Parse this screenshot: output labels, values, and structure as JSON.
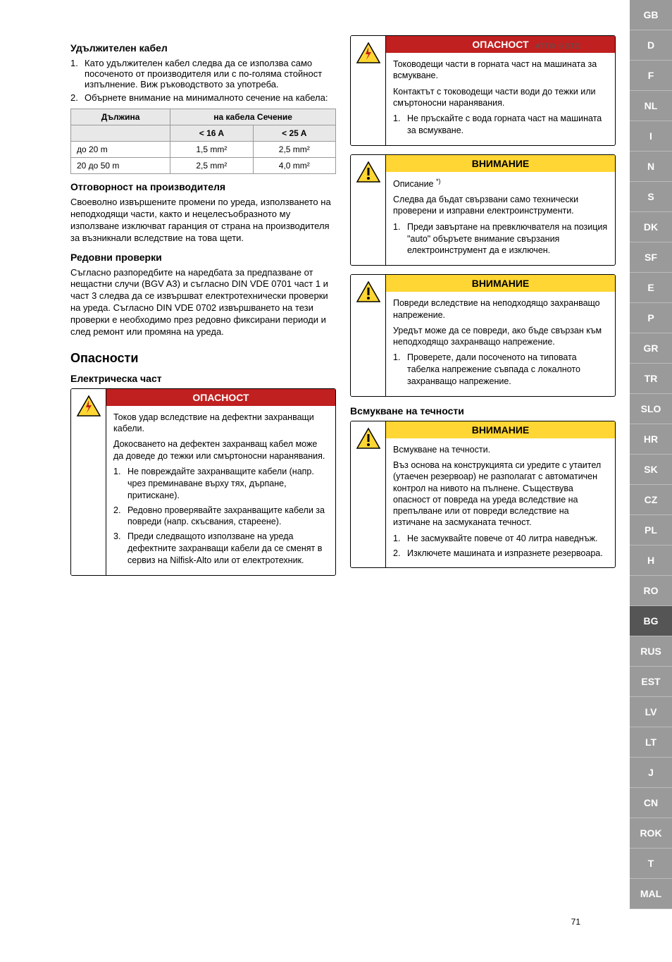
{
  "doc_header": "ATTIX 9 STD",
  "page_number": "71",
  "sidebar_tabs": [
    "GB",
    "D",
    "F",
    "NL",
    "I",
    "N",
    "S",
    "DK",
    "SF",
    "E",
    "P",
    "GR",
    "TR",
    "SLO",
    "HR",
    "SK",
    "CZ",
    "PL",
    "H",
    "RO",
    "BG",
    "RUS",
    "EST",
    "LV",
    "LT",
    "J",
    "CN",
    "ROK",
    "T",
    "MAL"
  ],
  "active_tab": "BG",
  "left": {
    "h_ext_cable": "Удължителен кабел",
    "ext1_num": "1.",
    "ext1": "Като удължителен кабел следва да се използва само посоченото от производителя или с по-голяма стойност изпълнение. Виж ръководството за употреба.",
    "ext2_num": "2.",
    "ext2": "Обърнете внимание на минималното сечение на кабела:",
    "tbl_h1": "Дължина",
    "tbl_h2": "на кабела Сечение",
    "tbl_s1": "< 16 A",
    "tbl_s2": "< 25 A",
    "tbl_r1c1": "до 20 m",
    "tbl_r1c2": "1,5 mm²",
    "tbl_r1c3": "2,5 mm²",
    "tbl_r2c1": "20 до 50 m",
    "tbl_r2c2": "2,5 mm²",
    "tbl_r2c3": "4,0 mm²",
    "h_resp": "Отговорност на производителя",
    "p_resp": "Своеволно извършените промени по уреда, използването на неподходящи части, както и нецелесъобразното му използване изключват гаранция от страна на производителя за възникнали вследствие на това щети.",
    "h_checks": "Редовни проверки",
    "p_checks": "Съгласно разпоредбите на наредбата за предпазване от нещастни случи (BGV A3) и съгласно DIN VDE 0701 част 1 и част 3 следва да се извършват електротехнически проверки на уреда. Съгласно DIN VDE 0702 извършването на тези проверки е необходимо през редовно фиксирани периоди и след ремонт или промяна на уреда.",
    "h_dangers": "Опасности",
    "h_electrical": "Електрическа част",
    "d1_title": "ОПАСНОСТ",
    "d1_p1": "Токов удар вследствие на дефектни захранващи кабели.",
    "d1_p2": "Докосването на дефектен захранващ кабел може да доведе до тежки или смъртоносни наранявания.",
    "d1_i1n": "1.",
    "d1_i1": "Не повреждайте захранващите кабели (напр. чрез преминаване върху тях, дърпане, притискане).",
    "d1_i2n": "2.",
    "d1_i2": "Редовно проверявайте захранващите кабели за повреди (напр. скъсвания, стареене).",
    "d1_i3n": "3.",
    "d1_i3": "Преди следващото използване на уреда дефектните захранващи кабели да се сменят в сервиз на Nilfisk-Alto или от електротехник."
  },
  "right": {
    "d2_title": "ОПАСНОСТ",
    "d2_p1": "Тоководещи части в горната част на машината за всмукване.",
    "d2_p2": "Контактът с тоководещи части води до тежки или смъртоносни наранявания.",
    "d2_i1n": "1.",
    "d2_i1": "Не пръскайте с вода горната част на машината за всмукване.",
    "c1_title": "ВНИМАНИЕ",
    "c1_p1": "Описание ",
    "c1_p1_sup": "*)",
    "c1_p2": "Следва да бъдат свързвани само технически проверени и изправни електроинструменти.",
    "c1_i1n": "1.",
    "c1_i1": "Преди завъртане на превключвателя на позиция \"auto\" объръете внимание свързания електроинструмент да е изключен.",
    "c2_title": "ВНИМАНИЕ",
    "c2_p1": "Повреди вследствие на неподходящо захранващо напрежение.",
    "c2_p2": "Уредът може да се повреди, ако бъде свързан към неподходящо захранващо напрежение.",
    "c2_i1n": "1.",
    "c2_i1": "Проверете, дали посоченото на типовата табелка напрежение съвпада с локалното захранващо напрежение.",
    "h_liquids": "Всмукване на течности",
    "c3_title": "ВНИМАНИЕ",
    "c3_p1": "Всмукване на течности.",
    "c3_p2": "Въз основа на конструкцията си уредите с утаител (утаечен резервоар) не разполагат с автоматичен контрол на нивото на пълнене. Съществува опасност от повреда на уреда вследствие на препълване или от повреди вследствие на изтичане на засмуканата течност.",
    "c3_i1n": "1.",
    "c3_i1": "Не засмуквайте повече от 40 литра наведнъж.",
    "c3_i2n": "2.",
    "c3_i2": "Изключете машината и изпразнете резервоара."
  },
  "colors": {
    "danger_bg": "#c02020",
    "caution_bg": "#ffd633",
    "tab_bg": "#9a9a9a",
    "tab_active_bg": "#555555",
    "table_header_bg": "#e8e8e8"
  }
}
